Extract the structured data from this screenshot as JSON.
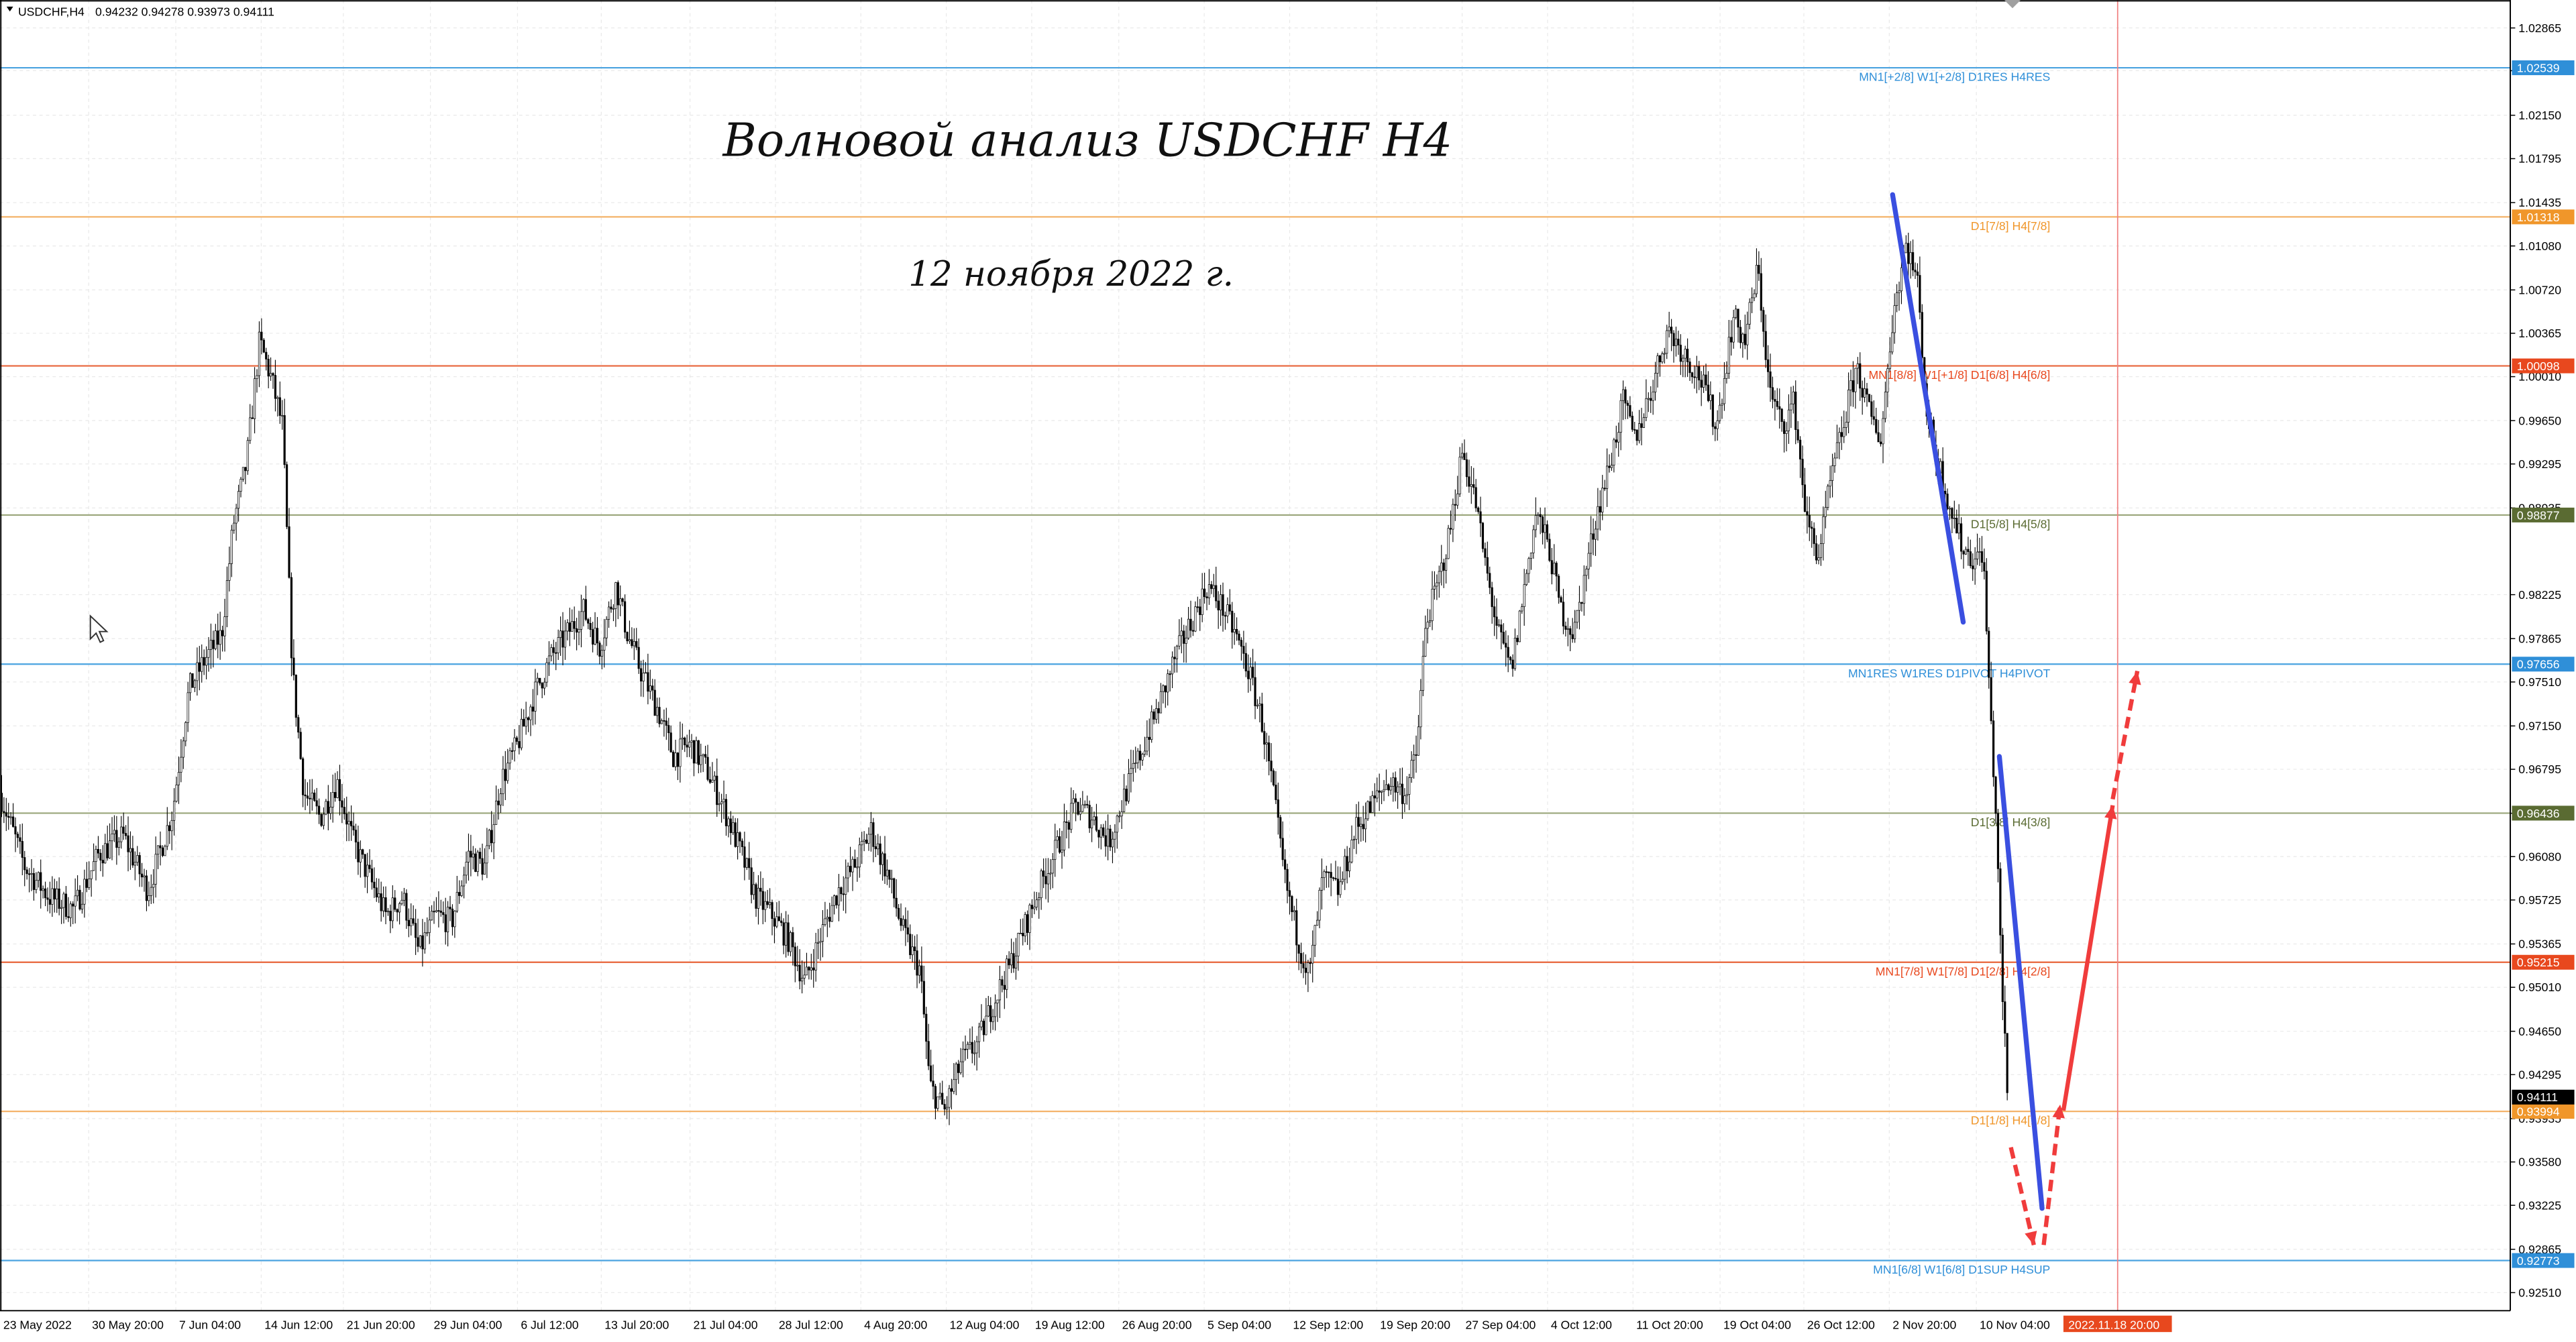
{
  "header": {
    "symbol": "USDCHF,H4",
    "ohlc": "0.94232 0.94278 0.93973 0.94111"
  },
  "annotations": {
    "title": "Волновой анализ USDCHF H4",
    "date": "12 ноября 2022 г."
  },
  "colors": {
    "grid": "#e9e9e9",
    "candle": "#000000",
    "blue_line": "#3a4fe0",
    "forecast": "#f03c3c",
    "vertical_marker": "#f08080"
  },
  "chart_data": {
    "type": "candlestick",
    "symbol": "USDCHF",
    "timeframe": "H4",
    "ylim": [
      0.9232,
      1.0318
    ],
    "price_ticks": [
      "1.02865",
      "1.02515",
      "1.02150",
      "1.01795",
      "1.01435",
      "1.01080",
      "1.00720",
      "1.00365",
      "1.00010",
      "0.99650",
      "0.99295",
      "0.98935",
      "0.98225",
      "0.97865",
      "0.97510",
      "0.97150",
      "0.96795",
      "0.96435",
      "0.96080",
      "0.95725",
      "0.95365",
      "0.95010",
      "0.94650",
      "0.94295",
      "0.93935",
      "0.93580",
      "0.93225",
      "0.92865",
      "0.92510"
    ],
    "time_labels": [
      "23 May 2022",
      "30 May 20:00",
      "7 Jun 04:00",
      "14 Jun 12:00",
      "21 Jun 20:00",
      "29 Jun 04:00",
      "6 Jul 12:00",
      "13 Jul 20:00",
      "21 Jul 04:00",
      "28 Jul 12:00",
      "4 Aug 20:00",
      "12 Aug 04:00",
      "19 Aug 12:00",
      "26 Aug 20:00",
      "5 Sep 04:00",
      "12 Sep 12:00",
      "19 Sep 20:00",
      "27 Sep 04:00",
      "4 Oct 12:00",
      "11 Oct 20:00",
      "19 Oct 04:00",
      "26 Oct 12:00",
      "2 Nov 20:00",
      "10 Nov 04:00"
    ],
    "current_time_label": "2022.11.18 20:00",
    "levels": [
      {
        "price": 1.02539,
        "tag": "1.02539",
        "label": "MN1[+2/8] W1[+2/8] D1RES H4RES",
        "color": "#4aa3e0",
        "tag_color": "#2f8fd8"
      },
      {
        "price": 1.01318,
        "tag": "1.01318",
        "label": "D1[7/8] H4[7/8]",
        "color": "#f4b36a",
        "tag_color": "#f0962a"
      },
      {
        "price": 1.00098,
        "tag": "1.00098",
        "label": "MN1[8/8] W1[+1/8] D1[6/8] H4[6/8]",
        "color": "#e8643a",
        "tag_color": "#e8481e"
      },
      {
        "price": 0.98877,
        "tag": "0.98877",
        "label": "D1[5/8] H4[5/8]",
        "color": "#9aa67a",
        "tag_color": "#5a6b32"
      },
      {
        "price": 0.97656,
        "tag": "0.97656",
        "label": "MN1RES W1RES D1PIVOT H4PIVOT",
        "color": "#4aa3e0",
        "tag_color": "#2f8fd8"
      },
      {
        "price": 0.96436,
        "tag": "0.96436",
        "label": "D1[3/8] H4[3/8]",
        "color": "#9aa67a",
        "tag_color": "#5a6b32"
      },
      {
        "price": 0.95215,
        "tag": "0.95215",
        "label": "MN1[7/8] W1[7/8] D1[2/8] H4[2/8]",
        "color": "#e8643a",
        "tag_color": "#e8481e"
      },
      {
        "price": 0.93994,
        "tag": "0.93994",
        "label": "D1[1/8] H4[1/8]",
        "color": "#f4b36a",
        "tag_color": "#f0962a"
      },
      {
        "price": 0.92773,
        "tag": "0.92773",
        "label": "MN1[6/8] W1[6/8] D1SUP H4SUP",
        "color": "#4aa3e0",
        "tag_color": "#2f8fd8"
      }
    ],
    "current_price": {
      "price": 0.94111,
      "tag": "0.94111"
    },
    "price_path": [
      [
        0,
        0.966
      ],
      [
        15,
        0.96
      ],
      [
        30,
        0.9575
      ],
      [
        45,
        0.9565
      ],
      [
        60,
        0.961
      ],
      [
        75,
        0.9625
      ],
      [
        90,
        0.958
      ],
      [
        105,
        0.9645
      ],
      [
        115,
        0.9745
      ],
      [
        125,
        0.977
      ],
      [
        135,
        0.979
      ],
      [
        142,
        0.988
      ],
      [
        150,
        0.993
      ],
      [
        158,
        1.003
      ],
      [
        165,
        1.0
      ],
      [
        172,
        0.996
      ],
      [
        178,
        0.976
      ],
      [
        185,
        0.966
      ],
      [
        195,
        0.964
      ],
      [
        205,
        0.967
      ],
      [
        215,
        0.962
      ],
      [
        225,
        0.959
      ],
      [
        235,
        0.956
      ],
      [
        245,
        0.9575
      ],
      [
        255,
        0.953
      ],
      [
        265,
        0.956
      ],
      [
        275,
        0.9555
      ],
      [
        285,
        0.961
      ],
      [
        295,
        0.96
      ],
      [
        305,
        0.967
      ],
      [
        315,
        0.97
      ],
      [
        325,
        0.974
      ],
      [
        335,
        0.977
      ],
      [
        345,
        0.979
      ],
      [
        355,
        0.981
      ],
      [
        365,
        0.978
      ],
      [
        375,
        0.983
      ],
      [
        382,
        0.979
      ],
      [
        390,
        0.976
      ],
      [
        400,
        0.973
      ],
      [
        410,
        0.969
      ],
      [
        420,
        0.97
      ],
      [
        430,
        0.968
      ],
      [
        440,
        0.965
      ],
      [
        450,
        0.9615
      ],
      [
        460,
        0.9575
      ],
      [
        470,
        0.956
      ],
      [
        480,
        0.954
      ],
      [
        490,
        0.9505
      ],
      [
        500,
        0.9545
      ],
      [
        510,
        0.958
      ],
      [
        520,
        0.96
      ],
      [
        530,
        0.963
      ],
      [
        540,
        0.9595
      ],
      [
        550,
        0.9545
      ],
      [
        560,
        0.9515
      ],
      [
        566,
        0.942
      ],
      [
        575,
        0.94
      ],
      [
        585,
        0.944
      ],
      [
        595,
        0.9455
      ],
      [
        605,
        0.949
      ],
      [
        615,
        0.952
      ],
      [
        625,
        0.9555
      ],
      [
        635,
        0.959
      ],
      [
        645,
        0.962
      ],
      [
        655,
        0.965
      ],
      [
        665,
        0.964
      ],
      [
        675,
        0.962
      ],
      [
        685,
        0.966
      ],
      [
        695,
        0.9695
      ],
      [
        705,
        0.973
      ],
      [
        715,
        0.977
      ],
      [
        725,
        0.98
      ],
      [
        735,
        0.983
      ],
      [
        745,
        0.981
      ],
      [
        752,
        0.979
      ],
      [
        760,
        0.976
      ],
      [
        768,
        0.972
      ],
      [
        775,
        0.966
      ],
      [
        782,
        0.959
      ],
      [
        790,
        0.954
      ],
      [
        797,
        0.951
      ],
      [
        805,
        0.959
      ],
      [
        815,
        0.958
      ],
      [
        825,
        0.963
      ],
      [
        835,
        0.965
      ],
      [
        845,
        0.967
      ],
      [
        855,
        0.966
      ],
      [
        862,
        0.969
      ],
      [
        868,
        0.98
      ],
      [
        875,
        0.983
      ],
      [
        882,
        0.987
      ],
      [
        890,
        0.994
      ],
      [
        898,
        0.99
      ],
      [
        905,
        0.984
      ],
      [
        912,
        0.979
      ],
      [
        920,
        0.976
      ],
      [
        928,
        0.983
      ],
      [
        935,
        0.989
      ],
      [
        943,
        0.986
      ],
      [
        950,
        0.981
      ],
      [
        958,
        0.979
      ],
      [
        965,
        0.984
      ],
      [
        972,
        0.989
      ],
      [
        980,
        0.993
      ],
      [
        988,
        0.998
      ],
      [
        995,
        0.995
      ],
      [
        1005,
        0.999
      ],
      [
        1015,
        1.004
      ],
      [
        1025,
        1.002
      ],
      [
        1035,
        1.0
      ],
      [
        1045,
        0.996
      ],
      [
        1055,
        1.005
      ],
      [
        1062,
        1.003
      ],
      [
        1070,
        1.009
      ],
      [
        1077,
        0.999
      ],
      [
        1085,
        0.996
      ],
      [
        1092,
        0.998
      ],
      [
        1100,
        0.988
      ],
      [
        1107,
        0.9855
      ],
      [
        1115,
        0.992
      ],
      [
        1122,
        0.996
      ],
      [
        1130,
        1.001
      ],
      [
        1138,
        0.997
      ],
      [
        1145,
        0.995
      ],
      [
        1152,
        1.005
      ],
      [
        1160,
        1.011
      ],
      [
        1167,
        1.008
      ],
      [
        1173,
        0.997
      ],
      [
        1180,
        0.993
      ],
      [
        1188,
        0.989
      ],
      [
        1195,
        0.986
      ],
      [
        1203,
        0.985
      ],
      [
        1207,
        0.986
      ],
      [
        1211,
        0.974
      ],
      [
        1215,
        0.964
      ],
      [
        1218,
        0.952
      ],
      [
        1222,
        0.9411
      ]
    ],
    "blue_segments": [
      [
        [
          1152,
          1.015
        ],
        [
          1195,
          0.98
        ]
      ],
      [
        [
          1217,
          0.969
        ],
        [
          1243,
          0.932
        ]
      ]
    ],
    "forecast_dashed": [
      [
        [
          1224,
          0.937
        ],
        [
          1238,
          0.929
        ]
      ],
      [
        [
          1244,
          0.929
        ],
        [
          1254,
          0.9405
        ]
      ],
      [
        [
          1286,
          0.9655
        ],
        [
          1301,
          0.976
        ]
      ]
    ],
    "forecast_solid": [
      [
        [
          1256,
          0.94
        ],
        [
          1286,
          0.965
        ]
      ]
    ],
    "current_time_x": 1289
  }
}
